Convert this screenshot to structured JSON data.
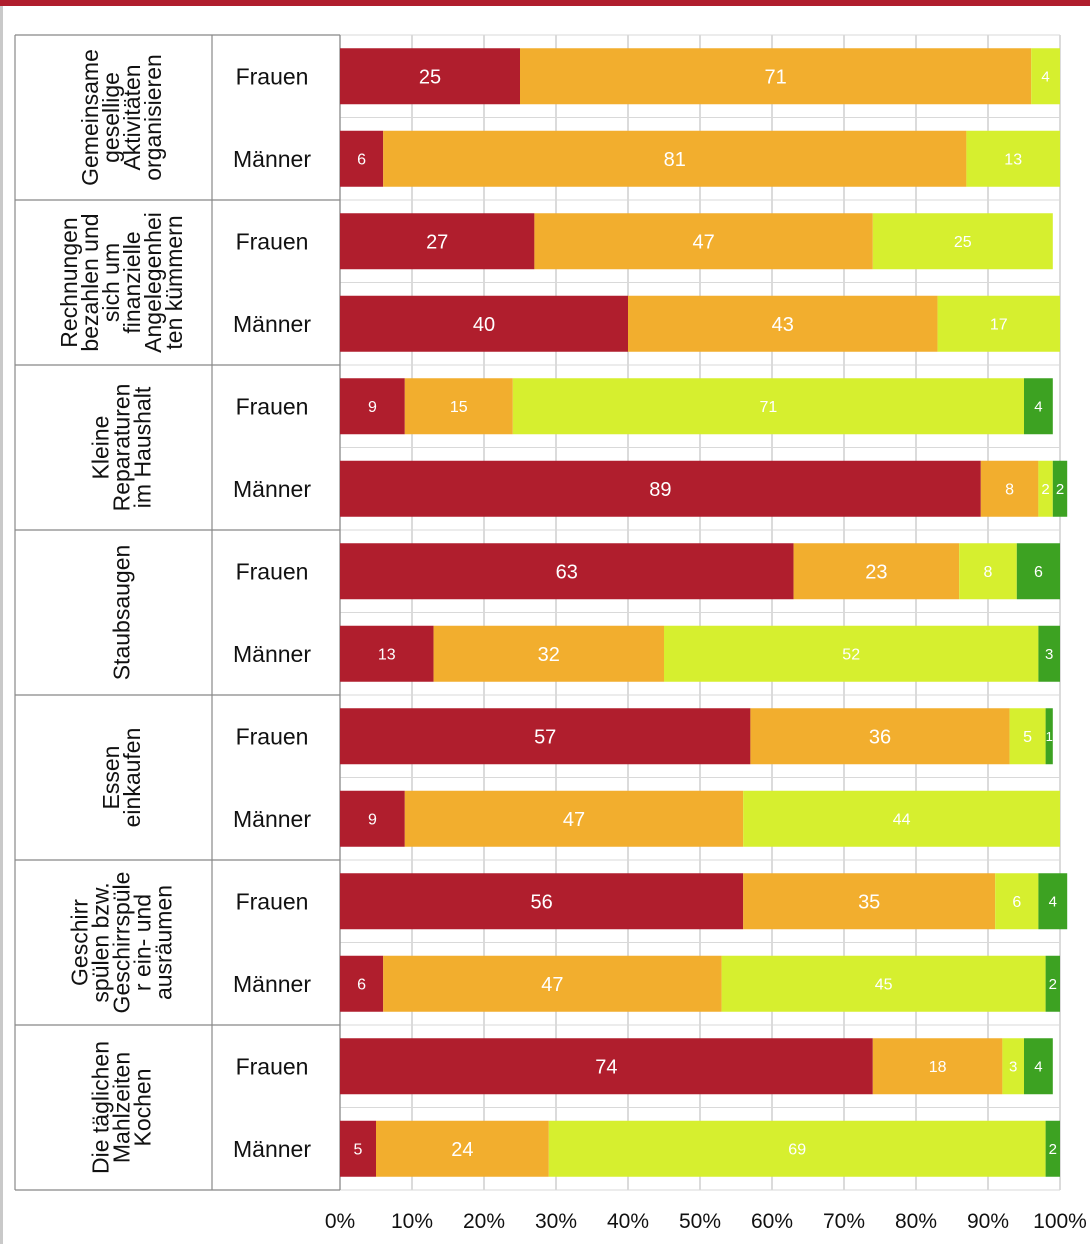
{
  "chart_data": {
    "type": "bar",
    "orientation": "horizontal",
    "stacked": "percent",
    "title": "",
    "xlabel": "",
    "ylabel": "",
    "xlim": [
      0,
      100
    ],
    "xticks": [
      "0%",
      "10%",
      "20%",
      "30%",
      "40%",
      "50%",
      "60%",
      "70%",
      "80%",
      "90%",
      "100%"
    ],
    "grid": true,
    "legend": "none",
    "colors": [
      "#b01e2d",
      "#f2ae2e",
      "#d6ef2f",
      "#3da222"
    ],
    "label_colors": [
      "#ffffff",
      "#111111",
      "#111111",
      "#ffffff"
    ],
    "groups": [
      {
        "label_lines": [
          "Gemeinsame",
          "gesellige",
          "Aktivitäten",
          "organisieren"
        ],
        "rows": [
          {
            "label": "Frauen",
            "values": [
              25,
              71,
              4,
              0
            ]
          },
          {
            "label": "Männer",
            "values": [
              6,
              81,
              13,
              0
            ]
          }
        ]
      },
      {
        "label_lines": [
          "Rechnungen",
          "bezahlen und",
          "sich um",
          "finanzielle",
          "Angelegenhei",
          "ten kümmern"
        ],
        "rows": [
          {
            "label": "Frauen",
            "values": [
              27,
              47,
              25,
              0
            ]
          },
          {
            "label": "Männer",
            "values": [
              40,
              43,
              17,
              0
            ]
          }
        ]
      },
      {
        "label_lines": [
          "Kleine",
          "Reparaturen",
          "im Haushalt"
        ],
        "rows": [
          {
            "label": "Frauen",
            "values": [
              9,
              15,
              71,
              4
            ]
          },
          {
            "label": "Männer",
            "values": [
              89,
              8,
              2,
              2
            ]
          }
        ]
      },
      {
        "label_lines": [
          "Staubsaugen"
        ],
        "rows": [
          {
            "label": "Frauen",
            "values": [
              63,
              23,
              8,
              6
            ]
          },
          {
            "label": "Männer",
            "values": [
              13,
              32,
              52,
              3
            ]
          }
        ]
      },
      {
        "label_lines": [
          "Essen",
          "einkaufen"
        ],
        "rows": [
          {
            "label": "Frauen",
            "values": [
              57,
              36,
              5,
              1
            ]
          },
          {
            "label": "Männer",
            "values": [
              9,
              47,
              44,
              0
            ]
          }
        ]
      },
      {
        "label_lines": [
          "Geschirr",
          "spülen bzw.",
          "Geschirrspüle",
          "r ein- und",
          "ausräumen"
        ],
        "rows": [
          {
            "label": "Frauen",
            "values": [
              56,
              35,
              6,
              4
            ]
          },
          {
            "label": "Männer",
            "values": [
              6,
              47,
              45,
              2
            ]
          }
        ]
      },
      {
        "label_lines": [
          "Die täglichen",
          "Mahlzeiten",
          "Kochen"
        ],
        "rows": [
          {
            "label": "Frauen",
            "values": [
              74,
              18,
              3,
              4
            ]
          },
          {
            "label": "Männer",
            "values": [
              5,
              24,
              69,
              2
            ]
          }
        ]
      }
    ]
  }
}
